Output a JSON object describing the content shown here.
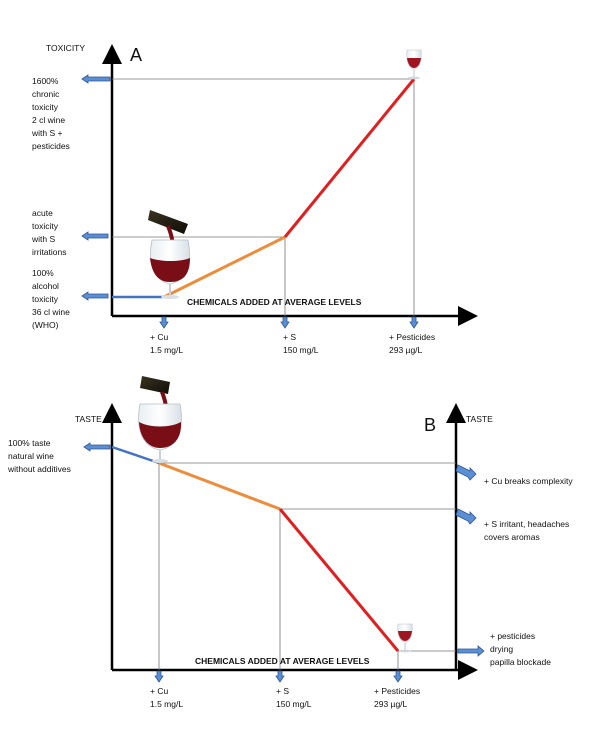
{
  "panel_a": {
    "letter": "A",
    "y_axis_title": "TOXICITY",
    "x_axis_title": "CHEMICALS ADDED AT AVERAGE LEVELS",
    "left_notes": [
      [
        "100%",
        "alcohol",
        "toxicity",
        "36 cl wine",
        "(WHO)"
      ],
      [
        "acute",
        "toxicity",
        "with S",
        "irritations"
      ],
      [
        "1600%",
        "chronic",
        "toxicity",
        "2 cl wine",
        "with S +",
        "pesticides"
      ]
    ],
    "ticks": [
      [
        "+ Cu",
        "1.5 mg/L"
      ],
      [
        "+ S",
        "150 mg/L"
      ],
      [
        "+ Pesticides",
        "293 µg/L"
      ]
    ]
  },
  "panel_b": {
    "letter": "B",
    "y_axis_title_left": "TASTE",
    "y_axis_title_right": "TASTE",
    "x_axis_title": "CHEMICALS ADDED AT AVERAGE LEVELS",
    "left_note": [
      "100% taste",
      "natural wine",
      "without additives"
    ],
    "right_notes": [
      [
        "+ Cu breaks complexity"
      ],
      [
        "+ S irritant, headaches",
        "covers aromas"
      ],
      [
        "+ pesticides",
        "drying",
        "papilla blockade"
      ]
    ],
    "ticks": [
      [
        "+ Cu",
        "1.5 mg/L"
      ],
      [
        "+ S",
        "150 mg/L"
      ],
      [
        "+ Pesticides",
        "293 µg/L"
      ]
    ]
  },
  "colors": {
    "segment_base": "#4472c4",
    "segment_cu": "#ed8c3a",
    "segment_s_pesticides": "#e02020",
    "arrow_fill": "#5b8fd4",
    "arrow_stroke": "#2f5597",
    "wine": "#7a0e17"
  }
}
